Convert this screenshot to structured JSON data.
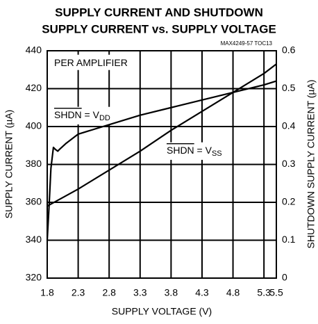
{
  "chart_data": {
    "type": "line",
    "title": [
      "SUPPLY CURRENT AND SHUTDOWN",
      "SUPPLY CURRENT vs. SUPPLY VOLTAGE"
    ],
    "subtitle": "MAX4249-57 TOC13",
    "xlabel": "SUPPLY VOLTAGE (V)",
    "ylabel": "SUPPLY CURRENT (µA)",
    "y2label": "SHUTDOWN SUPPLY CURRENT (µA)",
    "xlim": [
      1.8,
      5.5
    ],
    "xticks": [
      1.8,
      2.3,
      2.8,
      3.3,
      3.8,
      4.3,
      4.8,
      5.3,
      5.5
    ],
    "ylim": [
      320,
      440
    ],
    "yticks": [
      320,
      340,
      360,
      380,
      400,
      420,
      440
    ],
    "y2lim": [
      0,
      0.6
    ],
    "y2ticks": [
      0,
      0.1,
      0.2,
      0.3,
      0.4,
      0.5,
      0.6
    ],
    "grid": true,
    "annotations": [
      {
        "text": "PER AMPLIFIER"
      },
      {
        "overline": "SHDN",
        "text": " = V",
        "sub": "DD"
      },
      {
        "overline": "SHDN",
        "text": " = V",
        "sub": "SS"
      }
    ],
    "series": [
      {
        "color": "#000000",
        "axis": "y",
        "x": [
          1.8,
          1.83,
          1.86,
          1.9,
          1.93,
          1.97,
          2.0,
          2.1,
          2.3,
          2.8,
          3.3,
          3.8,
          4.3,
          4.8,
          5.3,
          5.5
        ],
        "values": [
          340,
          358,
          378,
          389,
          388,
          387,
          388,
          391,
          396,
          401,
          406,
          410,
          414,
          418,
          422,
          424
        ]
      },
      {
        "color": "#000000",
        "axis": "y2",
        "x": [
          1.8,
          2.3,
          2.8,
          3.3,
          3.8,
          4.3,
          4.8,
          5.3,
          5.5
        ],
        "values": [
          0.19,
          0.235,
          0.285,
          0.335,
          0.39,
          0.44,
          0.49,
          0.54,
          0.565
        ]
      }
    ]
  }
}
